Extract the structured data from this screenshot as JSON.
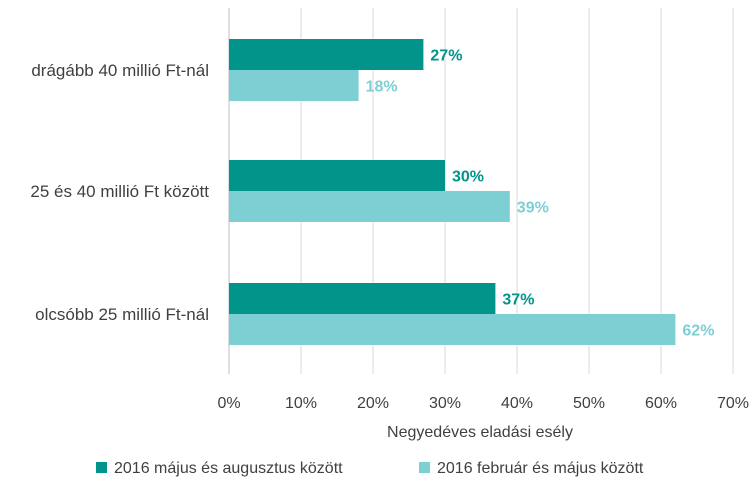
{
  "chart_data": {
    "type": "bar",
    "orientation": "horizontal",
    "categories": [
      "drágább 40 millió Ft-nál",
      "25 és 40 millió Ft között",
      "olcsóbb 25 millió Ft-nál"
    ],
    "series": [
      {
        "name": "2016 május és augusztus között",
        "values": [
          27,
          30,
          37
        ],
        "labels": [
          "27%",
          "30%",
          "37%"
        ],
        "color": "#00948a"
      },
      {
        "name": "2016 február és május között",
        "values": [
          18,
          39,
          62
        ],
        "labels": [
          "18%",
          "39%",
          "62%"
        ],
        "color": "#7ecfd4"
      }
    ],
    "xlabel": "Negyedéves eladási esély",
    "ylabel": "",
    "xlim": [
      0,
      70
    ],
    "xticks": [
      0,
      10,
      20,
      30,
      40,
      50,
      60,
      70
    ],
    "xtick_labels": [
      "0%",
      "10%",
      "20%",
      "30%",
      "40%",
      "50%",
      "60%",
      "70%"
    ],
    "grid": true,
    "legend_position": "bottom"
  }
}
